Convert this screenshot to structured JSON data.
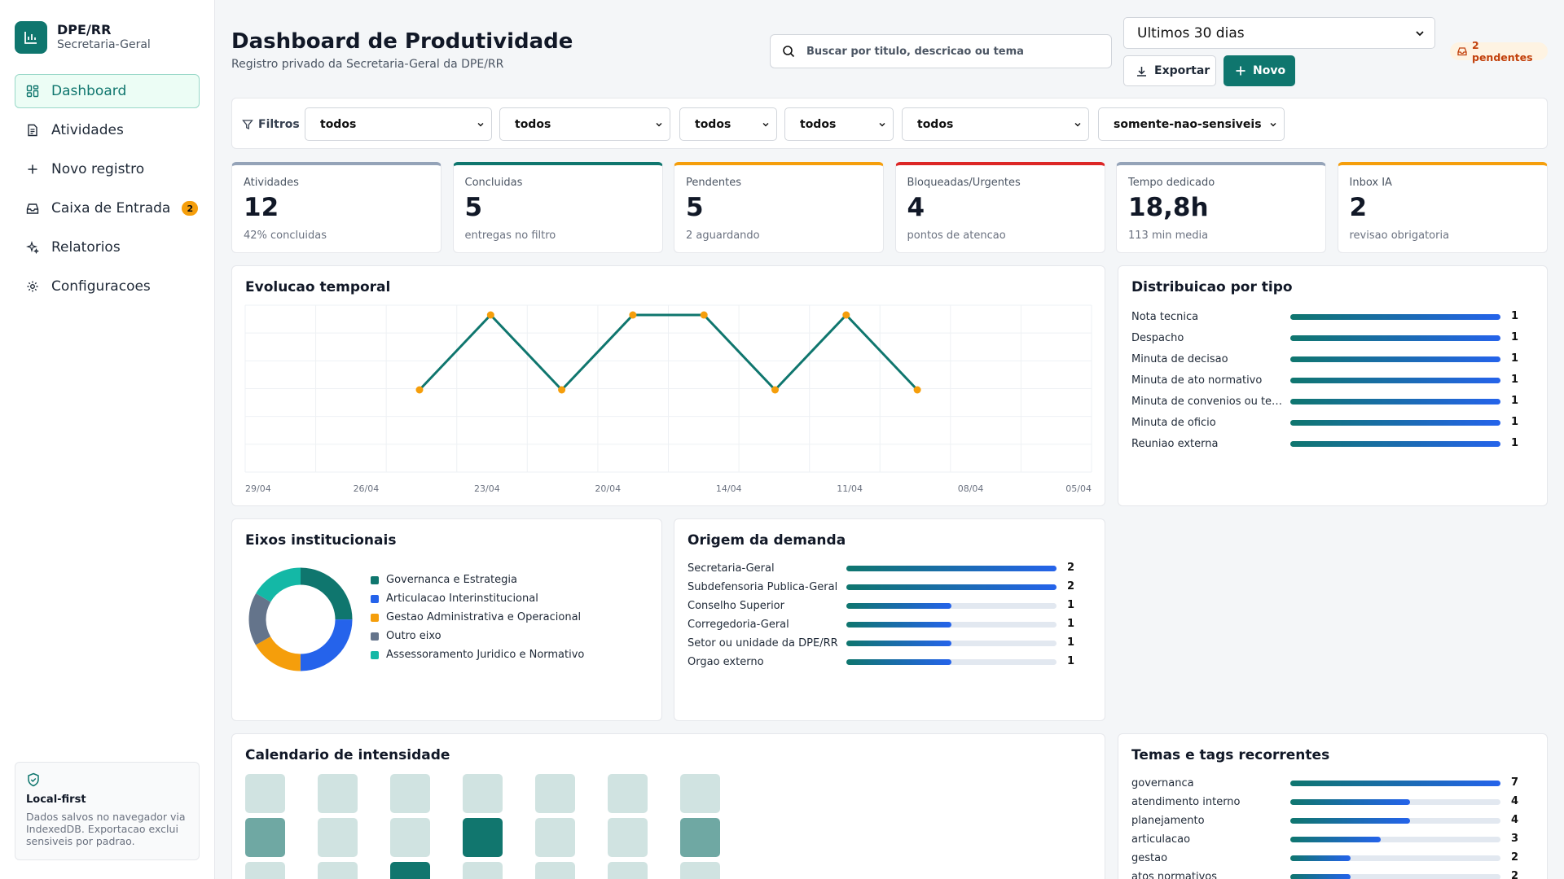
{
  "brand": {
    "name": "DPE/RR",
    "sub": "Secretaria-Geral"
  },
  "nav": [
    {
      "label": "Dashboard",
      "icon": "grid-icon",
      "active": true
    },
    {
      "label": "Atividades",
      "icon": "document-icon"
    },
    {
      "label": "Novo registro",
      "icon": "plus-icon"
    },
    {
      "label": "Caixa de Entrada",
      "icon": "inbox-icon",
      "badge": "2"
    },
    {
      "label": "Relatorios",
      "icon": "sparkles-icon"
    },
    {
      "label": "Configuracoes",
      "icon": "gear-icon"
    }
  ],
  "local": {
    "title": "Local-first",
    "text": "Dados salvos no navegador via IndexedDB. Exportacao exclui sensiveis por padrao."
  },
  "header": {
    "title": "Dashboard de Produtividade",
    "subtitle": "Registro privado da Secretaria-Geral da DPE/RR",
    "search_placeholder": "Buscar por titulo, descricao ou tema",
    "period": "Ultimos 30 dias",
    "export": "Exportar",
    "new": "Novo",
    "pending": "2 pendentes"
  },
  "filters": {
    "label": "Filtros",
    "selects": [
      "todos",
      "todos",
      "todos",
      "todos",
      "todos",
      "somente-nao-sensiveis"
    ]
  },
  "kpis": [
    {
      "label": "Atividades",
      "value": "12",
      "sub": "42% concluidas",
      "color": "#94a3b8"
    },
    {
      "label": "Concluidas",
      "value": "5",
      "sub": "entregas no filtro",
      "color": "#0f766e"
    },
    {
      "label": "Pendentes",
      "value": "5",
      "sub": "2 aguardando",
      "color": "#f59e0b"
    },
    {
      "label": "Bloqueadas/Urgentes",
      "value": "4",
      "sub": "pontos de atencao",
      "color": "#dc2626"
    },
    {
      "label": "Tempo dedicado",
      "value": "18,8h",
      "sub": "113 min media",
      "color": "#94a3b8"
    },
    {
      "label": "Inbox IA",
      "value": "2",
      "sub": "revisao obrigatoria",
      "color": "#f59e0b"
    }
  ],
  "timeline": {
    "title": "Evolucao temporal",
    "chart_data": {
      "type": "line",
      "x_ticks": [
        "29/04",
        "26/04",
        "23/04",
        "20/04",
        "14/04",
        "11/04",
        "08/04",
        "05/04"
      ],
      "points": [
        1,
        2,
        1,
        2,
        2,
        1,
        2,
        1
      ]
    }
  },
  "tipo": {
    "title": "Distribuicao por tipo",
    "items": [
      {
        "label": "Nota tecnica",
        "value": 1
      },
      {
        "label": "Despacho",
        "value": 1
      },
      {
        "label": "Minuta de decisao",
        "value": 1
      },
      {
        "label": "Minuta de ato normativo",
        "value": 1
      },
      {
        "label": "Minuta de convenios ou termos",
        "value": 1
      },
      {
        "label": "Minuta de oficio",
        "value": 1
      },
      {
        "label": "Reuniao externa",
        "value": 1
      }
    ]
  },
  "eixos": {
    "title": "Eixos institucionais",
    "items": [
      {
        "label": "Governanca e Estrategia",
        "value": 3,
        "color": "#0f766e"
      },
      {
        "label": "Articulacao Interinstitucional",
        "value": 3,
        "color": "#2563eb"
      },
      {
        "label": "Gestao Administrativa e Operacional",
        "value": 2,
        "color": "#f59e0b"
      },
      {
        "label": "Outro eixo",
        "value": 2,
        "color": "#64748b"
      },
      {
        "label": "Assessoramento Juridico e Normativo",
        "value": 2,
        "color": "#14b8a6"
      }
    ]
  },
  "origem": {
    "title": "Origem da demanda",
    "items": [
      {
        "label": "Secretaria-Geral",
        "value": 2
      },
      {
        "label": "Subdefensoria Publica-Geral",
        "value": 2
      },
      {
        "label": "Conselho Superior",
        "value": 1
      },
      {
        "label": "Corregedoria-Geral",
        "value": 1
      },
      {
        "label": "Setor ou unidade da DPE/RR",
        "value": 1
      },
      {
        "label": "Orgao externo",
        "value": 1
      }
    ]
  },
  "calendar": {
    "title": "Calendario de intensidade",
    "levels": [
      0,
      0,
      0,
      0,
      0,
      0,
      0,
      1,
      0,
      0,
      2,
      0,
      0,
      1,
      0,
      0,
      2,
      0,
      0,
      0,
      0
    ]
  },
  "temas": {
    "title": "Temas e tags recorrentes",
    "items": [
      {
        "label": "governanca",
        "value": 7
      },
      {
        "label": "atendimento interno",
        "value": 4
      },
      {
        "label": "planejamento",
        "value": 4
      },
      {
        "label": "articulacao",
        "value": 3
      },
      {
        "label": "gestao",
        "value": 2
      },
      {
        "label": "atos normativos",
        "value": 2
      }
    ]
  }
}
